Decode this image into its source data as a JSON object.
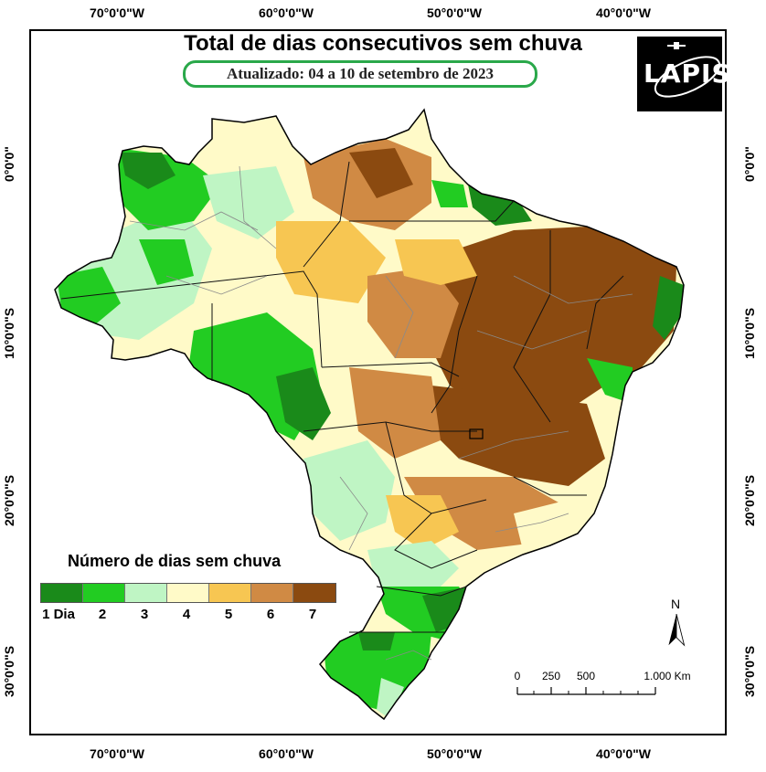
{
  "map": {
    "title": "Total de dias consecutivos sem chuva",
    "subtitle": "Atualizado: 04 a 10 de setembro de 2023",
    "logo_text": "LAPIS",
    "longitude_labels": [
      "70°0'0\"W",
      "60°0'0\"W",
      "50°0'0\"W",
      "40°0'0\"W"
    ],
    "latitude_labels": [
      "0°0'0\"",
      "10°0'0\"S",
      "20°0'0\"S",
      "30°0'0\"S"
    ]
  },
  "legend": {
    "title": "Número de dias sem chuva",
    "items": [
      {
        "label": "1 Dia",
        "color": "#1a8a1a"
      },
      {
        "label": "2",
        "color": "#22cc22"
      },
      {
        "label": "3",
        "color": "#bff5c4"
      },
      {
        "label": "4",
        "color": "#fffac8"
      },
      {
        "label": "5",
        "color": "#f7c652"
      },
      {
        "label": "6",
        "color": "#d08a44"
      },
      {
        "label": "7",
        "color": "#8b4a10"
      }
    ]
  },
  "north_arrow": {
    "label": "N"
  },
  "scale_bar": {
    "labels": [
      "0",
      "250",
      "500",
      "1.000 Km"
    ]
  }
}
